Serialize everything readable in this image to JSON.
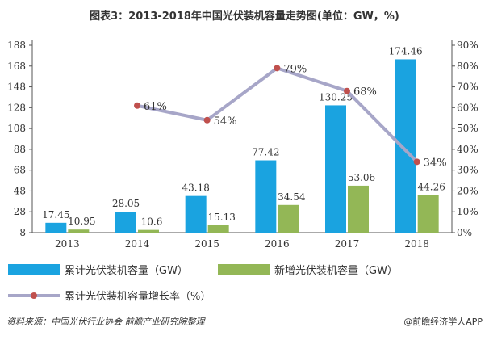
{
  "chart_data": {
    "type": "bar",
    "title": "图表3：2013-2018年中国光伏装机容量走势图(单位：GW，%)",
    "categories": [
      "2013",
      "2014",
      "2015",
      "2016",
      "2017",
      "2018"
    ],
    "series": [
      {
        "name": "累计光伏装机容量（GW）",
        "type": "bar",
        "axis": "left",
        "color": "#1AA3E0",
        "values": [
          17.45,
          28.05,
          43.18,
          77.42,
          130.25,
          174.46
        ]
      },
      {
        "name": "新增光伏装机容量（GW）",
        "type": "bar",
        "axis": "left",
        "color": "#93B756",
        "values": [
          10.95,
          10.6,
          15.13,
          34.54,
          53.06,
          44.26
        ]
      },
      {
        "name": "累计光伏装机容量增长率（%）",
        "type": "line",
        "axis": "right",
        "color": "#A7A6C8",
        "marker_color": "#C0504D",
        "values": [
          null,
          61,
          54,
          79,
          68,
          34
        ]
      }
    ],
    "labels": {
      "cumulative": [
        "17.45",
        "28.05",
        "43.18",
        "77.42",
        "130.25",
        "174.46"
      ],
      "new": [
        "10.95",
        "10.6",
        "15.13",
        "34.54",
        "53.06",
        "44.26"
      ],
      "growth": [
        "",
        "61%",
        "54%",
        "79%",
        "68%",
        "34%"
      ]
    },
    "ylim_left": [
      8,
      188
    ],
    "yticks_left": [
      "8",
      "28",
      "48",
      "68",
      "88",
      "108",
      "128",
      "148",
      "168",
      "188"
    ],
    "ylim_right": [
      0,
      90
    ],
    "yticks_right": [
      "0%",
      "10%",
      "20%",
      "30%",
      "40%",
      "50%",
      "60%",
      "70%",
      "80%",
      "90%"
    ],
    "grid": false,
    "legend_position": "bottom"
  },
  "footer": {
    "source": "资料来源：中国光伏行业协会 前瞻产业研究院整理",
    "brand": "@前瞻经济学人APP"
  }
}
